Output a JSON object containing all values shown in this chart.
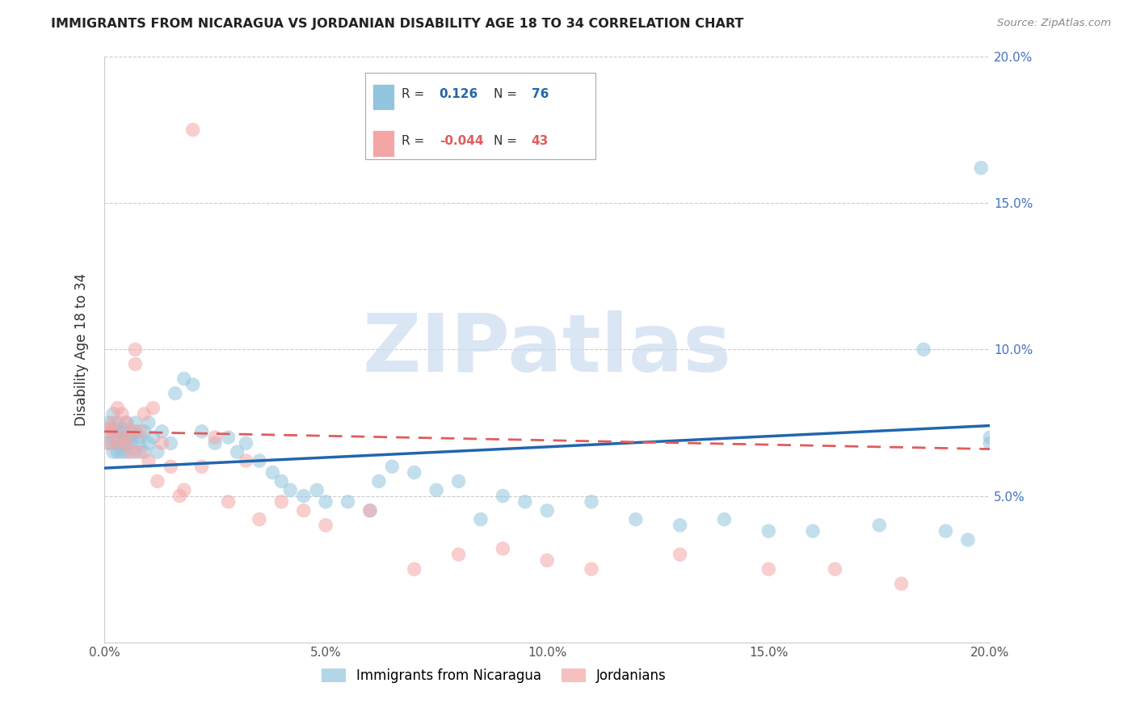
{
  "title": "IMMIGRANTS FROM NICARAGUA VS JORDANIAN DISABILITY AGE 18 TO 34 CORRELATION CHART",
  "source": "Source: ZipAtlas.com",
  "ylabel": "Disability Age 18 to 34",
  "xlim": [
    0.0,
    0.2
  ],
  "ylim": [
    0.0,
    0.2
  ],
  "blue_R": 0.126,
  "blue_N": 76,
  "pink_R": -0.044,
  "pink_N": 43,
  "blue_color": "#92c5de",
  "pink_color": "#f4a6a6",
  "blue_line_color": "#2166ac",
  "pink_line_color": "#e05c5c",
  "watermark_color": "#ccdcf0",
  "grid_color": "#cccccc",
  "blue_scatter_x": [
    0.001,
    0.001,
    0.001,
    0.002,
    0.002,
    0.002,
    0.002,
    0.002,
    0.003,
    0.003,
    0.003,
    0.003,
    0.003,
    0.004,
    0.004,
    0.004,
    0.004,
    0.005,
    0.005,
    0.005,
    0.005,
    0.006,
    0.006,
    0.006,
    0.007,
    0.007,
    0.007,
    0.008,
    0.008,
    0.009,
    0.009,
    0.01,
    0.01,
    0.011,
    0.012,
    0.013,
    0.015,
    0.016,
    0.018,
    0.02,
    0.022,
    0.025,
    0.028,
    0.03,
    0.032,
    0.035,
    0.038,
    0.04,
    0.042,
    0.045,
    0.048,
    0.05,
    0.055,
    0.06,
    0.062,
    0.065,
    0.07,
    0.075,
    0.08,
    0.085,
    0.09,
    0.095,
    0.1,
    0.11,
    0.12,
    0.13,
    0.14,
    0.15,
    0.16,
    0.175,
    0.185,
    0.19,
    0.195,
    0.198,
    0.2,
    0.2
  ],
  "blue_scatter_y": [
    0.072,
    0.068,
    0.075,
    0.07,
    0.073,
    0.065,
    0.078,
    0.068,
    0.072,
    0.065,
    0.07,
    0.075,
    0.068,
    0.073,
    0.068,
    0.065,
    0.072,
    0.07,
    0.068,
    0.075,
    0.065,
    0.072,
    0.068,
    0.07,
    0.075,
    0.065,
    0.072,
    0.068,
    0.07,
    0.065,
    0.072,
    0.068,
    0.075,
    0.07,
    0.065,
    0.072,
    0.068,
    0.085,
    0.09,
    0.088,
    0.072,
    0.068,
    0.07,
    0.065,
    0.068,
    0.062,
    0.058,
    0.055,
    0.052,
    0.05,
    0.052,
    0.048,
    0.048,
    0.045,
    0.055,
    0.06,
    0.058,
    0.052,
    0.055,
    0.042,
    0.05,
    0.048,
    0.045,
    0.048,
    0.042,
    0.04,
    0.042,
    0.038,
    0.038,
    0.04,
    0.1,
    0.038,
    0.035,
    0.162,
    0.07,
    0.068
  ],
  "pink_scatter_x": [
    0.001,
    0.001,
    0.002,
    0.002,
    0.003,
    0.003,
    0.004,
    0.004,
    0.005,
    0.005,
    0.006,
    0.006,
    0.007,
    0.007,
    0.008,
    0.008,
    0.009,
    0.01,
    0.011,
    0.012,
    0.013,
    0.015,
    0.017,
    0.018,
    0.02,
    0.022,
    0.025,
    0.028,
    0.032,
    0.035,
    0.04,
    0.045,
    0.05,
    0.06,
    0.07,
    0.08,
    0.09,
    0.1,
    0.11,
    0.13,
    0.15,
    0.165,
    0.18
  ],
  "pink_scatter_y": [
    0.073,
    0.068,
    0.072,
    0.075,
    0.068,
    0.08,
    0.07,
    0.078,
    0.068,
    0.075,
    0.065,
    0.072,
    0.095,
    0.1,
    0.072,
    0.065,
    0.078,
    0.062,
    0.08,
    0.055,
    0.068,
    0.06,
    0.05,
    0.052,
    0.175,
    0.06,
    0.07,
    0.048,
    0.062,
    0.042,
    0.048,
    0.045,
    0.04,
    0.045,
    0.025,
    0.03,
    0.032,
    0.028,
    0.025,
    0.03,
    0.025,
    0.025,
    0.02
  ],
  "blue_trendline": [
    0.0595,
    0.074
  ],
  "pink_trendline": [
    0.072,
    0.066
  ]
}
